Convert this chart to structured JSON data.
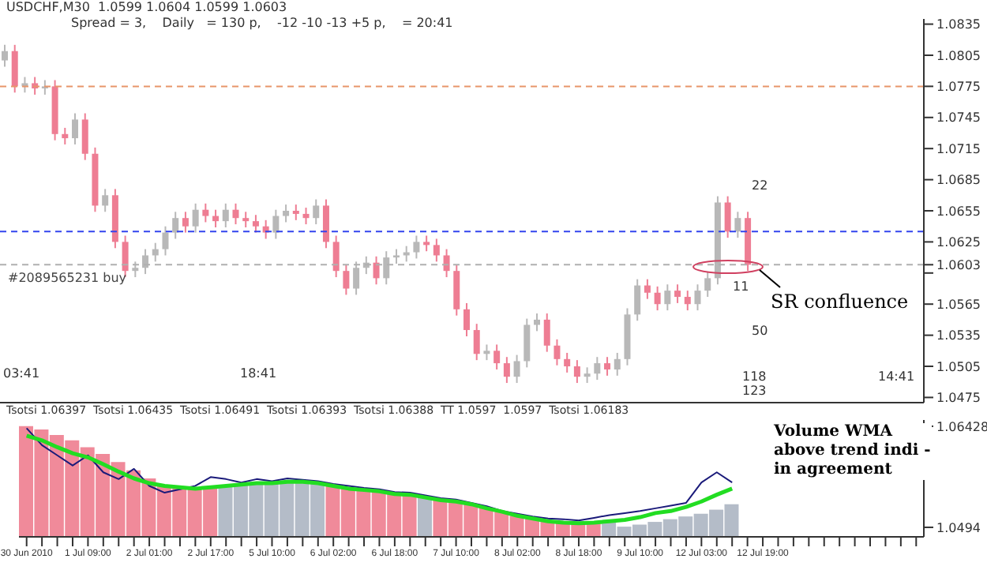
{
  "chart_data": [
    {
      "type": "candlestick",
      "categories": [
        null,
        null,
        null,
        null,
        null,
        null,
        null,
        null,
        null,
        null,
        null,
        null,
        null,
        null,
        null,
        null,
        null,
        null,
        null,
        null,
        null,
        null,
        null,
        null,
        null,
        null,
        null,
        null,
        null,
        null,
        null,
        null,
        null,
        null,
        null,
        null,
        null,
        null,
        null,
        null,
        null,
        null,
        null,
        null,
        null,
        null,
        null,
        null,
        null,
        null,
        null,
        null,
        null,
        null,
        null,
        null,
        null,
        null,
        null,
        null,
        null,
        null,
        null,
        null,
        null,
        null,
        null,
        null,
        null,
        null,
        null,
        null,
        null,
        null,
        null,
        null,
        null,
        null,
        null,
        null,
        null,
        null,
        null,
        null,
        null,
        null,
        null,
        null,
        null,
        null,
        null,
        null
      ],
      "ohlc": [
        [
          1.08,
          1.0815,
          1.0794,
          1.0809
        ],
        [
          1.0809,
          1.0815,
          1.0769,
          1.0775
        ],
        [
          1.0775,
          1.0784,
          1.0769,
          1.0778
        ],
        [
          1.0778,
          1.0784,
          1.0767,
          1.0773
        ],
        [
          1.0773,
          1.0781,
          1.0767,
          1.0775
        ],
        [
          1.0775,
          1.0781,
          1.0723,
          1.0729
        ],
        [
          1.0729,
          1.0735,
          1.0719,
          1.0725
        ],
        [
          1.0725,
          1.0749,
          1.0719,
          1.0743
        ],
        [
          1.0743,
          1.0749,
          1.0704,
          1.071
        ],
        [
          1.071,
          1.0716,
          1.0654,
          1.066
        ],
        [
          1.066,
          1.0676,
          1.0654,
          1.067
        ],
        [
          1.067,
          1.0676,
          1.0619,
          1.0625
        ],
        [
          1.0625,
          1.0631,
          1.0591,
          1.0597
        ],
        [
          1.0597,
          1.0606,
          1.0591,
          1.06
        ],
        [
          1.06,
          1.0618,
          1.0594,
          1.0612
        ],
        [
          1.0612,
          1.0624,
          1.0606,
          1.0618
        ],
        [
          1.0618,
          1.064,
          1.0612,
          1.0634
        ],
        [
          1.0634,
          1.0654,
          1.0628,
          1.0648
        ],
        [
          1.0648,
          1.0654,
          1.0634,
          1.064
        ],
        [
          1.064,
          1.0662,
          1.0634,
          1.0656
        ],
        [
          1.0656,
          1.0662,
          1.0644,
          1.065
        ],
        [
          1.065,
          1.0656,
          1.0639,
          1.0645
        ],
        [
          1.0645,
          1.0662,
          1.0639,
          1.0656
        ],
        [
          1.0656,
          1.0662,
          1.0642,
          1.0648
        ],
        [
          1.0648,
          1.0654,
          1.0639,
          1.0645
        ],
        [
          1.0645,
          1.0651,
          1.0634,
          1.064
        ],
        [
          1.064,
          1.0646,
          1.0628,
          1.0634
        ],
        [
          1.0634,
          1.0656,
          1.0628,
          1.065
        ],
        [
          1.065,
          1.0661,
          1.0644,
          1.0655
        ],
        [
          1.0655,
          1.0661,
          1.0646,
          1.0652
        ],
        [
          1.0652,
          1.0658,
          1.0642,
          1.0648
        ],
        [
          1.0648,
          1.0666,
          1.0642,
          1.066
        ],
        [
          1.066,
          1.0666,
          1.0619,
          1.0625
        ],
        [
          1.0625,
          1.0631,
          1.0591,
          1.0597
        ],
        [
          1.0597,
          1.0603,
          1.0574,
          1.058
        ],
        [
          1.058,
          1.0606,
          1.0574,
          1.06
        ],
        [
          1.06,
          1.0611,
          1.0594,
          1.0605
        ],
        [
          1.0605,
          1.0611,
          1.0584,
          1.059
        ],
        [
          1.059,
          1.0616,
          1.0584,
          1.061
        ],
        [
          1.061,
          1.0618,
          1.0604,
          1.0612
        ],
        [
          1.0612,
          1.0621,
          1.0606,
          1.0615
        ],
        [
          1.0615,
          1.0631,
          1.0609,
          1.0625
        ],
        [
          1.0625,
          1.0631,
          1.0616,
          1.0622
        ],
        [
          1.0622,
          1.0628,
          1.0606,
          1.0612
        ],
        [
          1.0612,
          1.0618,
          1.0591,
          1.0597
        ],
        [
          1.0597,
          1.0603,
          1.0554,
          1.056
        ],
        [
          1.056,
          1.0566,
          1.0534,
          1.054
        ],
        [
          1.054,
          1.0546,
          1.0511,
          1.0517
        ],
        [
          1.0517,
          1.0526,
          1.0511,
          1.052
        ],
        [
          1.052,
          1.0526,
          1.0502,
          1.0508
        ],
        [
          1.0508,
          1.0514,
          1.0489,
          1.0495
        ],
        [
          1.0495,
          1.0516,
          1.0489,
          1.051
        ],
        [
          1.051,
          1.0551,
          1.0504,
          1.0545
        ],
        [
          1.0545,
          1.0556,
          1.0539,
          1.055
        ],
        [
          1.055,
          1.0556,
          1.0519,
          1.0525
        ],
        [
          1.0525,
          1.0531,
          1.0506,
          1.0512
        ],
        [
          1.0512,
          1.0518,
          1.0499,
          1.0505
        ],
        [
          1.0505,
          1.0511,
          1.0489,
          1.0495
        ],
        [
          1.0495,
          1.0504,
          1.0489,
          1.0498
        ],
        [
          1.0498,
          1.0514,
          1.0492,
          1.0508
        ],
        [
          1.0508,
          1.0514,
          1.0496,
          1.0502
        ],
        [
          1.0502,
          1.0518,
          1.0496,
          1.0512
        ],
        [
          1.0512,
          1.0561,
          1.0506,
          1.0555
        ],
        [
          1.0555,
          1.0589,
          1.0549,
          1.0583
        ],
        [
          1.0583,
          1.0589,
          1.057,
          1.0576
        ],
        [
          1.0576,
          1.0582,
          1.0559,
          1.0565
        ],
        [
          1.0565,
          1.0584,
          1.0559,
          1.0578
        ],
        [
          1.0578,
          1.0584,
          1.0566,
          1.0572
        ],
        [
          1.0572,
          1.0578,
          1.0559,
          1.0565
        ],
        [
          1.0565,
          1.0584,
          1.0559,
          1.0578
        ],
        [
          1.0578,
          1.0596,
          1.0572,
          1.059
        ],
        [
          1.059,
          1.0669,
          1.0584,
          1.0663
        ],
        [
          1.0663,
          1.0669,
          1.0629,
          1.0635
        ],
        [
          1.0635,
          1.0654,
          1.0629,
          1.0648
        ],
        [
          1.0648,
          1.0654,
          1.0597,
          1.0603
        ],
        null,
        null,
        null,
        null,
        null,
        null,
        null,
        null,
        null,
        null,
        null,
        null,
        null,
        null,
        null,
        null,
        null
      ],
      "colors": [
        "#b8b8b8",
        "#ee7d93",
        "#b8b8b8",
        "#ee7d93",
        "#b8b8b8",
        "#ee7d93",
        "#ee7d93",
        "#b8b8b8",
        "#ee7d93",
        "#ee7d93",
        "#b8b8b8",
        "#ee7d93",
        "#ee7d93",
        "#b8b8b8",
        "#b8b8b8",
        "#b8b8b8",
        "#b8b8b8",
        "#b8b8b8",
        "#ee7d93",
        "#b8b8b8",
        "#ee7d93",
        "#ee7d93",
        "#b8b8b8",
        "#ee7d93",
        "#ee7d93",
        "#ee7d93",
        "#ee7d93",
        "#b8b8b8",
        "#b8b8b8",
        "#ee7d93",
        "#ee7d93",
        "#b8b8b8",
        "#ee7d93",
        "#ee7d93",
        "#ee7d93",
        "#b8b8b8",
        "#b8b8b8",
        "#ee7d93",
        "#b8b8b8",
        "#b8b8b8",
        "#b8b8b8",
        "#b8b8b8",
        "#ee7d93",
        "#ee7d93",
        "#ee7d93",
        "#ee7d93",
        "#ee7d93",
        "#ee7d93",
        "#b8b8b8",
        "#ee7d93",
        "#ee7d93",
        "#b8b8b8",
        "#b8b8b8",
        "#b8b8b8",
        "#ee7d93",
        "#ee7d93",
        "#ee7d93",
        "#ee7d93",
        "#b8b8b8",
        "#b8b8b8",
        "#ee7d93",
        "#b8b8b8",
        "#b8b8b8",
        "#b8b8b8",
        "#ee7d93",
        "#ee7d93",
        "#b8b8b8",
        "#ee7d93",
        "#ee7d93",
        "#b8b8b8",
        "#b8b8b8",
        "#b8b8b8",
        "#ee7d93",
        "#b8b8b8",
        "#ee7d93",
        null,
        null,
        null,
        null,
        null,
        null,
        null,
        null,
        null,
        null,
        null,
        null,
        null,
        null,
        null,
        null,
        null
      ],
      "ylim": [
        1.047,
        1.084
      ],
      "yticks": [
        1.0475,
        1.0505,
        1.0535,
        1.0565,
        {
          "value": 1.0595,
          "label": null
        },
        {
          "value": 1.0603,
          "label": "1.0603"
        },
        1.0625,
        1.0655,
        1.0685,
        1.0715,
        1.0745,
        1.0775,
        1.0805,
        1.0835
      ],
      "tick_labels": "y",
      "grid": false,
      "legend": false,
      "ref_lines": [
        {
          "axis": "y",
          "value": 1.0775,
          "color": "#e8956a",
          "line_style": "dashed"
        },
        {
          "axis": "y",
          "value": 1.0635,
          "color": "#3344ee",
          "line_style": "dashed"
        },
        {
          "axis": "y",
          "value": 1.0603,
          "label": "#2089565231 buy",
          "color": "#b0b0b0",
          "line_style": "dashed"
        }
      ],
      "annotations": [
        "USDCHF,M30  1.0599 1.0604 1.0599 1.0603",
        "Spread = 3,    Daily   = 130 p,    -12 -10 -13 +5 p,    = 20:41",
        "SR confluence",
        "03:41",
        "18:41",
        "14:41",
        "22",
        "11",
        "50",
        "118",
        "123"
      ]
    },
    {
      "type": "bar",
      "title": "Tsotsi 1.06397  Tsotsi 1.06435  Tsotsi 1.06491  Tsotsi 1.06393  Tsotsi 1.06388  TT 1.0597  1.0597  Tsotsi 1.06183",
      "categories": [
        "30 Jun 2010",
        null,
        null,
        null,
        "1 Jul 09:00",
        null,
        null,
        null,
        "2 Jul 01:00",
        null,
        null,
        null,
        "2 Jul 17:00",
        null,
        null,
        null,
        "5 Jul 10:00",
        null,
        null,
        null,
        "6 Jul 02:00",
        null,
        null,
        null,
        "6 Jul 18:00",
        null,
        null,
        null,
        "7 Jul 10:00",
        null,
        null,
        null,
        "8 Jul 02:00",
        null,
        null,
        null,
        "8 Jul 18:00",
        null,
        null,
        null,
        "9 Jul 10:00",
        null,
        null,
        null,
        "12 Jul 03:00",
        null,
        null,
        null,
        "12 Jul 19:00",
        null,
        null,
        null,
        null,
        null,
        null,
        null,
        null,
        null,
        null
      ],
      "series": [
        {
          "type": "bar",
          "colors": [
            "#f08a9a",
            "#f08a9a",
            "#f08a9a",
            "#f08a9a",
            "#f08a9a",
            "#f08a9a",
            "#f08a9a",
            "#f08a9a",
            "#f08a9a",
            "#f08a9a",
            "#f08a9a",
            "#f08a9a",
            "#f08a9a",
            "#b4bcc8",
            "#b4bcc8",
            "#b4bcc8",
            "#b4bcc8",
            "#b4bcc8",
            "#b4bcc8",
            "#b4bcc8",
            "#f08a9a",
            "#f08a9a",
            "#f08a9a",
            "#f08a9a",
            "#f08a9a",
            "#f08a9a",
            "#b4bcc8",
            "#f08a9a",
            "#f08a9a",
            "#f08a9a",
            "#f08a9a",
            "#f08a9a",
            "#f08a9a",
            "#f08a9a",
            "#f08a9a",
            "#f08a9a",
            "#f08a9a",
            "#f08a9a",
            "#b4bcc8",
            "#b4bcc8",
            "#b4bcc8",
            "#b4bcc8",
            "#b4bcc8",
            "#b4bcc8",
            "#b4bcc8",
            "#b4bcc8",
            "#b4bcc8",
            null,
            null,
            null,
            null,
            null,
            null,
            null,
            null,
            null,
            null,
            null,
            null
          ],
          "values": [
            1.0643,
            1.0638,
            1.063,
            1.0622,
            1.0612,
            1.0602,
            1.059,
            1.0578,
            1.0566,
            1.0555,
            1.0553,
            1.0551,
            1.0553,
            1.0555,
            1.0557,
            1.0559,
            1.0559,
            1.0561,
            1.0561,
            1.0559,
            1.0555,
            1.0551,
            1.0549,
            1.0547,
            1.0543,
            1.0542,
            1.0538,
            1.0534,
            1.0532,
            1.0528,
            1.0522,
            1.0517,
            1.0511,
            1.0507,
            1.0503,
            1.0501,
            1.05,
            1.0501,
            1.0503,
            1.0495,
            1.0498,
            1.0502,
            1.0506,
            1.051,
            1.0514,
            1.052,
            1.0528,
            null,
            null,
            null,
            null,
            null,
            null,
            null,
            null,
            null,
            null,
            null,
            null
          ]
        },
        {
          "type": "line",
          "color": "#1a1a7a",
          "values": [
            1.064,
            1.0615,
            1.06,
            1.0585,
            1.06,
            1.0575,
            1.0565,
            1.058,
            1.0555,
            1.0545,
            1.055,
            1.0555,
            1.0568,
            1.0565,
            1.056,
            1.0565,
            1.0562,
            1.0566,
            1.0564,
            1.0562,
            1.0558,
            1.0555,
            1.0552,
            1.055,
            1.0546,
            1.0545,
            1.0541,
            1.0537,
            1.0535,
            1.053,
            1.0525,
            1.0518,
            1.0514,
            1.051,
            1.0507,
            1.0506,
            1.0504,
            1.0508,
            1.0512,
            1.0515,
            1.0518,
            1.0522,
            1.0526,
            1.053,
            1.056,
            1.0575,
            1.056,
            null,
            null,
            null,
            null,
            null,
            null,
            null,
            null,
            null,
            null,
            null,
            null
          ]
        },
        {
          "type": "line",
          "color": "#22dd22",
          "values": [
            1.0629,
            1.0622,
            1.0612,
            1.0603,
            1.0597,
            1.0587,
            1.0576,
            1.0566,
            1.0559,
            1.0555,
            1.0553,
            1.0551,
            1.0553,
            1.0555,
            1.0557,
            1.0559,
            1.0559,
            1.0561,
            1.0561,
            1.0559,
            1.0555,
            1.0551,
            1.0549,
            1.0547,
            1.0543,
            1.0542,
            1.0538,
            1.0534,
            1.0532,
            1.0528,
            1.0522,
            1.0517,
            1.0511,
            1.0507,
            1.0503,
            1.0501,
            1.05,
            1.0501,
            1.0503,
            1.0505,
            1.0509,
            1.0515,
            1.0518,
            1.0524,
            1.0532,
            1.0542,
            1.0551,
            null,
            null,
            null,
            null,
            null,
            null,
            null,
            null,
            null,
            null,
            null,
            null
          ]
        }
      ],
      "ylim": [
        1.048,
        1.0652
      ],
      "yticks": [
        1.0494,
        1.06428
      ],
      "grid": false,
      "legend": false,
      "annotations": [
        "Volume WMA above trend indi - in agreement"
      ]
    }
  ]
}
